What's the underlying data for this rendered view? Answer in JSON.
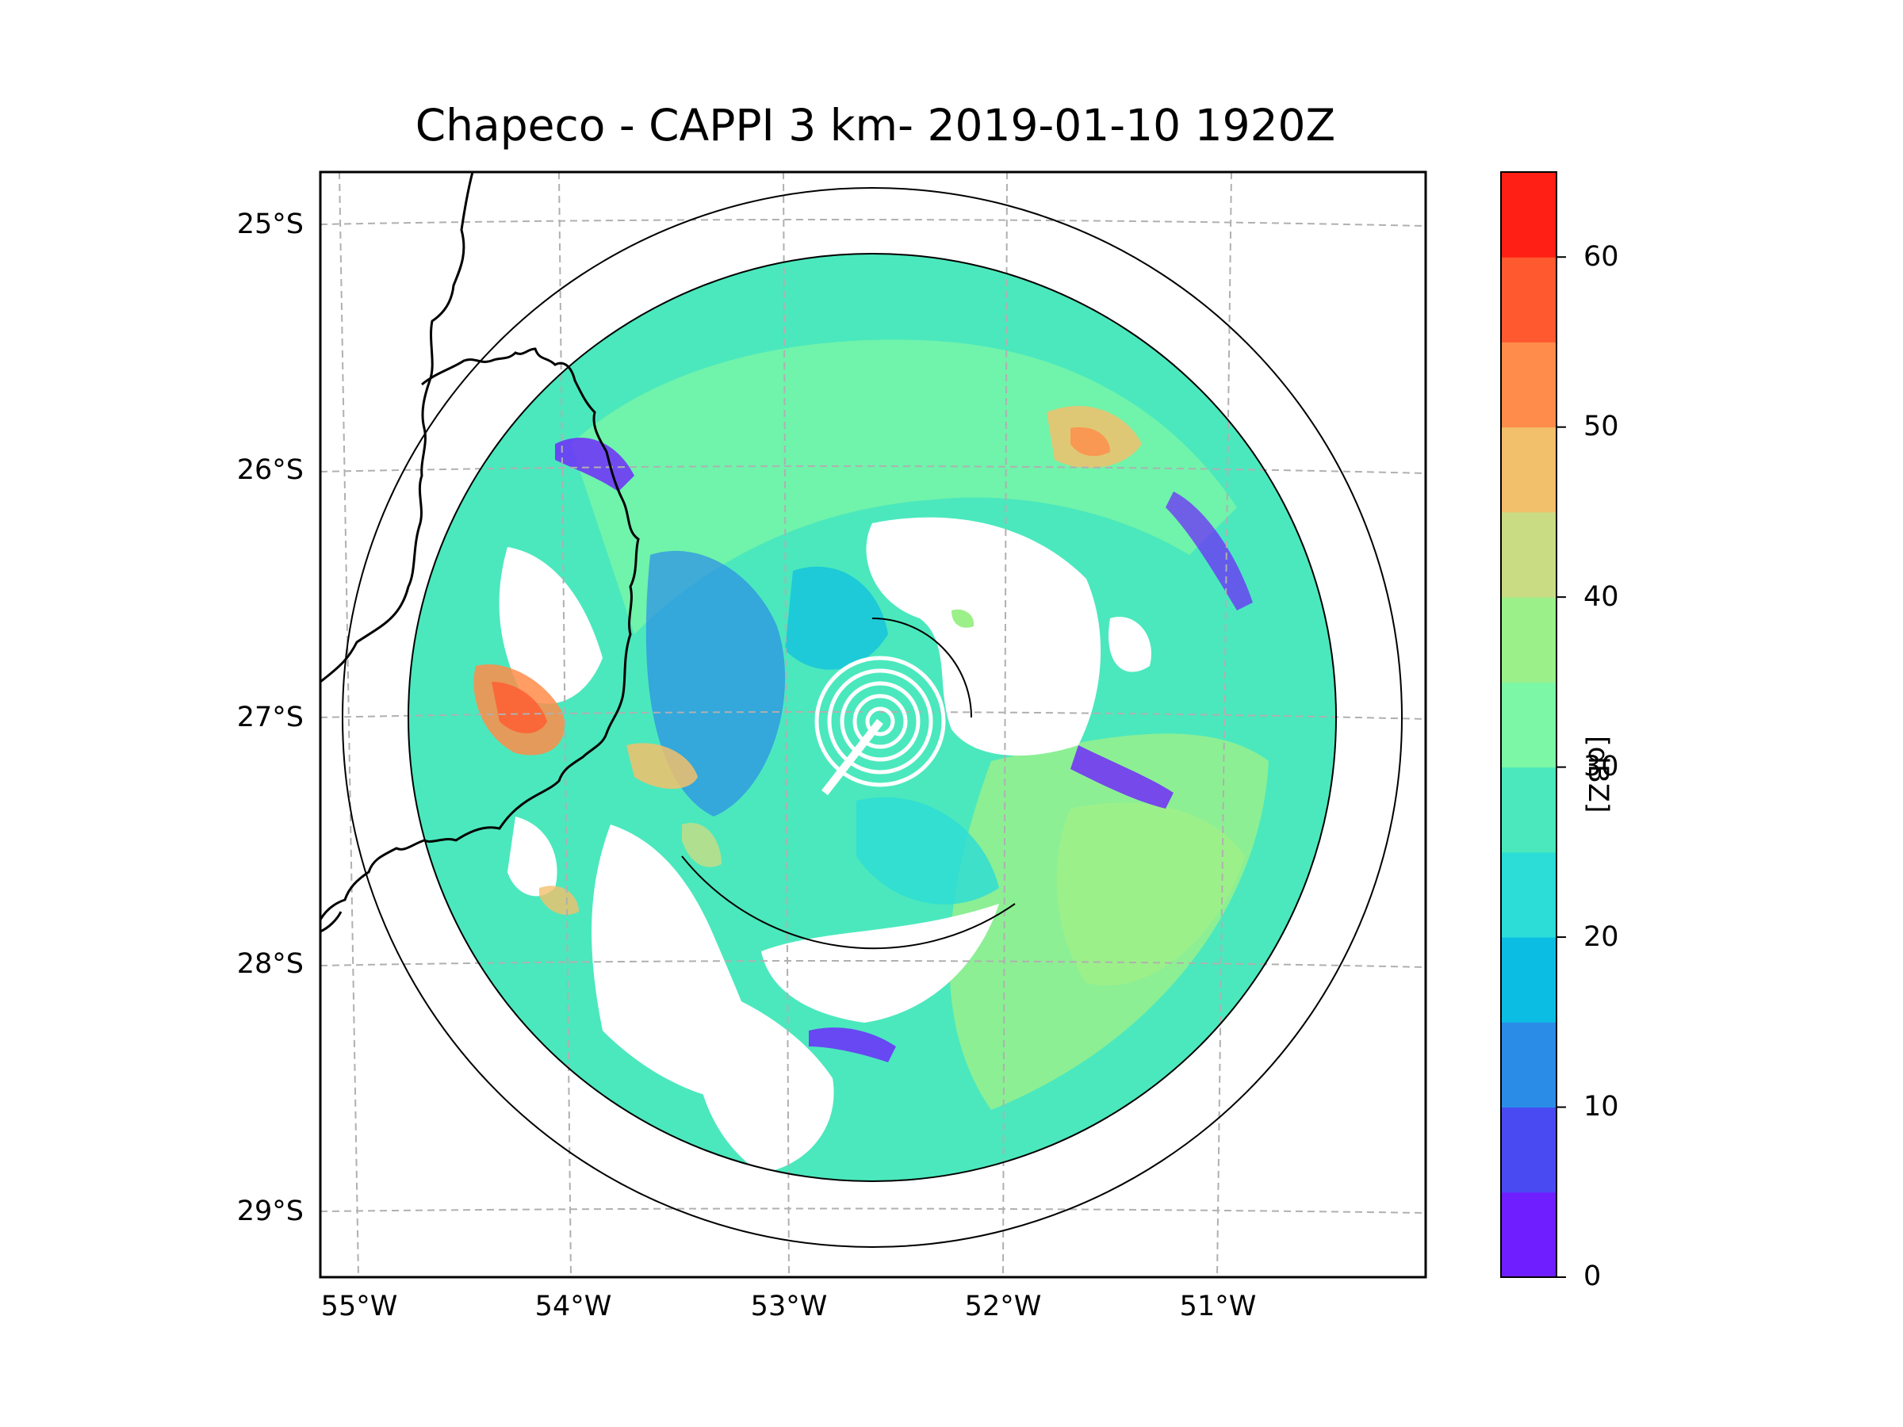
{
  "title": "Chapeco - CAPPI 3 km- 2019-01-10 1920Z",
  "map": {
    "lat_ticks": [
      {
        "value": -25,
        "label": "25°S"
      },
      {
        "value": -26,
        "label": "26°S"
      },
      {
        "value": -27,
        "label": "27°S"
      },
      {
        "value": -28,
        "label": "28°S"
      },
      {
        "value": -29,
        "label": "29°S"
      }
    ],
    "lon_ticks": [
      {
        "value": -55,
        "label": "55°W"
      },
      {
        "value": -54,
        "label": "54°W"
      },
      {
        "value": -53,
        "label": "53°W"
      },
      {
        "value": -52,
        "label": "52°W"
      },
      {
        "value": -51,
        "label": "51°W"
      }
    ],
    "radar_center": {
      "lat": -27.0,
      "lon": -52.6
    },
    "range_rings": [
      {
        "name": "ring-inner-1",
        "type": "partial"
      },
      {
        "name": "ring-data-edge",
        "type": "full"
      },
      {
        "name": "ring-outer",
        "type": "full"
      }
    ],
    "gridline_color": "#b0b0b0",
    "boundary_color": "#000000"
  },
  "colorbar": {
    "label": "[dBZ]",
    "min": 0,
    "max": 65,
    "tick_labels": [
      "0",
      "10",
      "20",
      "30",
      "40",
      "50",
      "60"
    ],
    "levels": [
      {
        "from": 0,
        "to": 5,
        "color": "#6f1fff"
      },
      {
        "from": 5,
        "to": 10,
        "color": "#4a4af2"
      },
      {
        "from": 10,
        "to": 15,
        "color": "#2b8ce8"
      },
      {
        "from": 15,
        "to": 20,
        "color": "#0cbde3"
      },
      {
        "from": 20,
        "to": 25,
        "color": "#2cdcd6"
      },
      {
        "from": 25,
        "to": 30,
        "color": "#4be8bd"
      },
      {
        "from": 30,
        "to": 35,
        "color": "#7cf7a6"
      },
      {
        "from": 35,
        "to": 40,
        "color": "#9cf08a"
      },
      {
        "from": 40,
        "to": 45,
        "color": "#c9dc84"
      },
      {
        "from": 45,
        "to": 50,
        "color": "#f2bf6b"
      },
      {
        "from": 50,
        "to": 55,
        "color": "#ff8c4a"
      },
      {
        "from": 55,
        "to": 60,
        "color": "#ff5a2f"
      },
      {
        "from": 60,
        "to": 65,
        "color": "#ff1f14"
      }
    ]
  }
}
